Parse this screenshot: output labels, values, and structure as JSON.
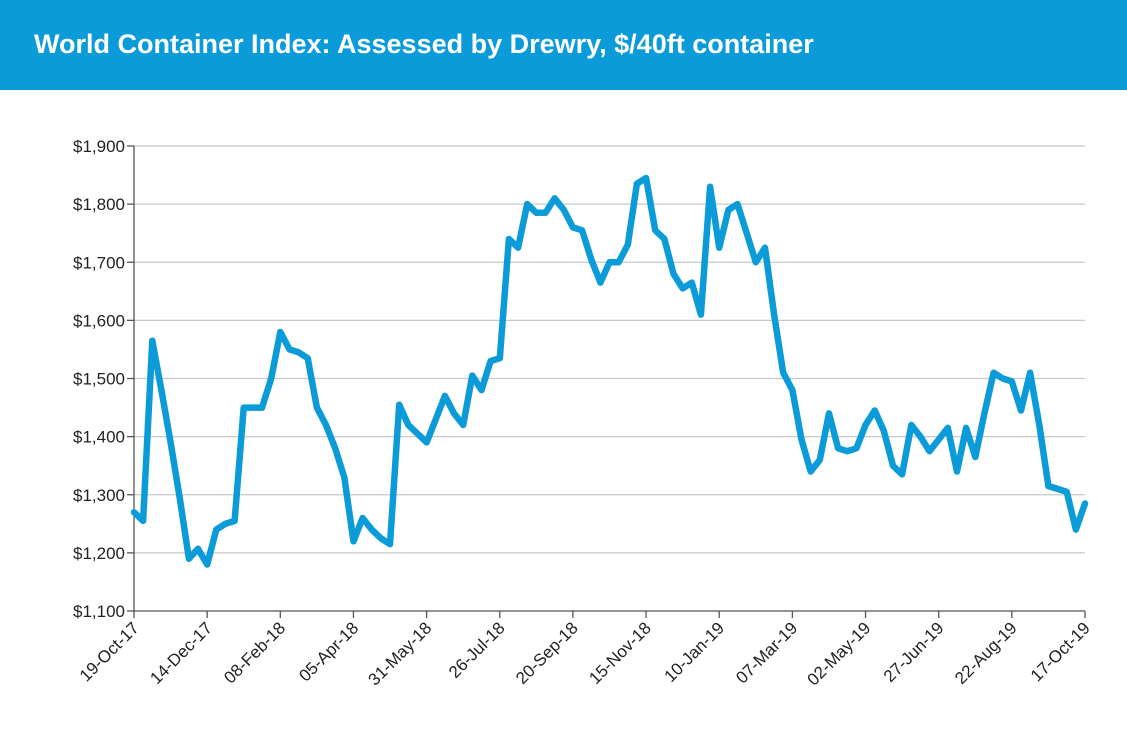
{
  "header": {
    "title": "World Container Index: Assessed by Drewry, $/40ft container",
    "background_color": "#0a9bd8"
  },
  "chart_data": {
    "type": "line",
    "title": "World Container Index: Assessed by Drewry, $/40ft container",
    "xlabel": "",
    "ylabel": "",
    "ylim": [
      1100,
      1900
    ],
    "yticks": [
      1100,
      1200,
      1300,
      1400,
      1500,
      1600,
      1700,
      1800,
      1900
    ],
    "ytick_labels": [
      "$1,100",
      "$1,200",
      "$1,300",
      "$1,400",
      "$1,500",
      "$1,600",
      "$1,700",
      "$1,800",
      "$1,900"
    ],
    "xlim": [
      "2017-10-19",
      "2019-10-17"
    ],
    "xtick_labels": [
      "19-Oct-17",
      "14-Dec-17",
      "08-Feb-18",
      "05-Apr-18",
      "31-May-18",
      "26-Jul-18",
      "20-Sep-18",
      "15-Nov-18",
      "10-Jan-19",
      "07-Mar-19",
      "02-May-19",
      "27-Jun-19",
      "22-Aug-19",
      "17-Oct-19"
    ],
    "xtick_dates": [
      "2017-10-19",
      "2017-12-14",
      "2018-02-08",
      "2018-04-05",
      "2018-05-31",
      "2018-07-26",
      "2018-09-20",
      "2018-11-15",
      "2019-01-10",
      "2019-03-07",
      "2019-05-02",
      "2019-06-27",
      "2019-08-22",
      "2019-10-17"
    ],
    "grid": "horizontal",
    "line_color": "#0a9bd8",
    "series": [
      {
        "values": [
          [
            "2017-10-19",
            1270
          ],
          [
            "2017-10-26",
            1255
          ],
          [
            "2017-11-02",
            1565
          ],
          [
            "2017-11-09",
            1480
          ],
          [
            "2017-11-16",
            1390
          ],
          [
            "2017-11-23",
            1295
          ],
          [
            "2017-11-30",
            1190
          ],
          [
            "2017-12-07",
            1207
          ],
          [
            "2017-12-14",
            1180
          ],
          [
            "2017-12-21",
            1240
          ],
          [
            "2017-12-28",
            1250
          ],
          [
            "2018-01-04",
            1255
          ],
          [
            "2018-01-11",
            1450
          ],
          [
            "2018-01-18",
            1450
          ],
          [
            "2018-01-25",
            1450
          ],
          [
            "2018-02-01",
            1500
          ],
          [
            "2018-02-08",
            1580
          ],
          [
            "2018-02-15",
            1550
          ],
          [
            "2018-02-22",
            1545
          ],
          [
            "2018-03-01",
            1535
          ],
          [
            "2018-03-08",
            1450
          ],
          [
            "2018-03-15",
            1420
          ],
          [
            "2018-03-22",
            1380
          ],
          [
            "2018-03-29",
            1330
          ],
          [
            "2018-04-05",
            1220
          ],
          [
            "2018-04-12",
            1260
          ],
          [
            "2018-04-19",
            1240
          ],
          [
            "2018-04-26",
            1225
          ],
          [
            "2018-05-03",
            1215
          ],
          [
            "2018-05-10",
            1455
          ],
          [
            "2018-05-17",
            1420
          ],
          [
            "2018-05-24",
            1405
          ],
          [
            "2018-05-31",
            1390
          ],
          [
            "2018-06-07",
            1430
          ],
          [
            "2018-06-14",
            1470
          ],
          [
            "2018-06-21",
            1440
          ],
          [
            "2018-06-28",
            1420
          ],
          [
            "2018-07-05",
            1505
          ],
          [
            "2018-07-12",
            1480
          ],
          [
            "2018-07-19",
            1530
          ],
          [
            "2018-07-26",
            1535
          ],
          [
            "2018-08-02",
            1740
          ],
          [
            "2018-08-09",
            1725
          ],
          [
            "2018-08-16",
            1800
          ],
          [
            "2018-08-23",
            1785
          ],
          [
            "2018-08-30",
            1785
          ],
          [
            "2018-09-06",
            1810
          ],
          [
            "2018-09-13",
            1790
          ],
          [
            "2018-09-20",
            1760
          ],
          [
            "2018-09-27",
            1755
          ],
          [
            "2018-10-04",
            1705
          ],
          [
            "2018-10-11",
            1665
          ],
          [
            "2018-10-18",
            1700
          ],
          [
            "2018-10-25",
            1700
          ],
          [
            "2018-11-01",
            1730
          ],
          [
            "2018-11-08",
            1835
          ],
          [
            "2018-11-15",
            1845
          ],
          [
            "2018-11-22",
            1755
          ],
          [
            "2018-11-29",
            1740
          ],
          [
            "2018-12-06",
            1680
          ],
          [
            "2018-12-13",
            1655
          ],
          [
            "2018-12-20",
            1665
          ],
          [
            "2018-12-27",
            1610
          ],
          [
            "2019-01-03",
            1830
          ],
          [
            "2019-01-10",
            1725
          ],
          [
            "2019-01-17",
            1790
          ],
          [
            "2019-01-24",
            1800
          ],
          [
            "2019-01-31",
            1750
          ],
          [
            "2019-02-07",
            1700
          ],
          [
            "2019-02-14",
            1725
          ],
          [
            "2019-02-21",
            1610
          ],
          [
            "2019-02-28",
            1510
          ],
          [
            "2019-03-07",
            1480
          ],
          [
            "2019-03-14",
            1395
          ],
          [
            "2019-03-21",
            1340
          ],
          [
            "2019-03-28",
            1360
          ],
          [
            "2019-04-04",
            1440
          ],
          [
            "2019-04-11",
            1380
          ],
          [
            "2019-04-18",
            1375
          ],
          [
            "2019-04-25",
            1380
          ],
          [
            "2019-05-02",
            1420
          ],
          [
            "2019-05-09",
            1445
          ],
          [
            "2019-05-16",
            1410
          ],
          [
            "2019-05-23",
            1350
          ],
          [
            "2019-05-30",
            1335
          ],
          [
            "2019-06-06",
            1420
          ],
          [
            "2019-06-13",
            1400
          ],
          [
            "2019-06-20",
            1375
          ],
          [
            "2019-06-27",
            1395
          ],
          [
            "2019-07-04",
            1415
          ],
          [
            "2019-07-11",
            1340
          ],
          [
            "2019-07-18",
            1415
          ],
          [
            "2019-07-25",
            1365
          ],
          [
            "2019-08-01",
            1440
          ],
          [
            "2019-08-08",
            1510
          ],
          [
            "2019-08-15",
            1500
          ],
          [
            "2019-08-22",
            1495
          ],
          [
            "2019-08-29",
            1445
          ],
          [
            "2019-09-05",
            1510
          ],
          [
            "2019-09-12",
            1420
          ],
          [
            "2019-09-19",
            1315
          ],
          [
            "2019-09-26",
            1310
          ],
          [
            "2019-10-03",
            1305
          ],
          [
            "2019-10-10",
            1240
          ],
          [
            "2019-10-17",
            1285
          ]
        ]
      }
    ]
  }
}
